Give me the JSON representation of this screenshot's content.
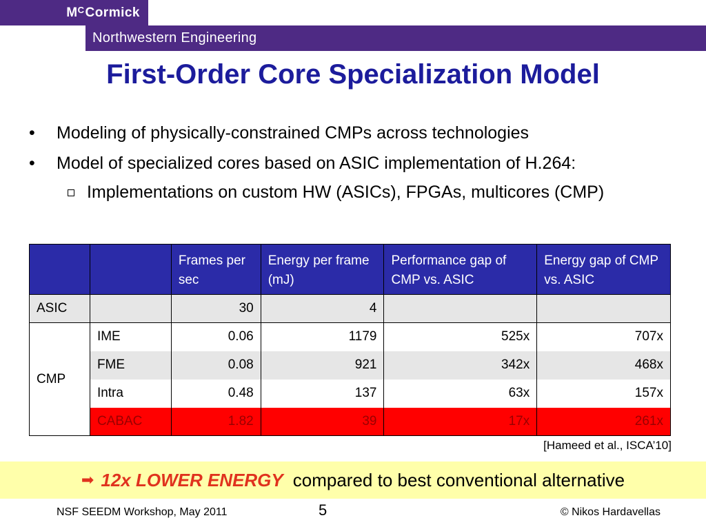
{
  "header": {
    "logo_prefix": "M",
    "logo_sup": "C",
    "logo_rest": "Cormick",
    "department": "Northwestern Engineering"
  },
  "slide": {
    "title": "First-Order Core Specialization Model",
    "bullets": [
      "Modeling of physically-constrained CMPs across technologies",
      "Model of specialized cores based on ASIC implementation of H.264:"
    ],
    "sub_bullet": "Implementations on custom HW (ASICs), FPGAs, multicores (CMP)"
  },
  "table": {
    "headers": [
      "Frames per sec",
      "Energy per frame (mJ)",
      "Performance gap of CMP vs. ASIC",
      "Energy gap of CMP vs. ASIC"
    ],
    "asic": {
      "label": "ASIC",
      "fps": "30",
      "energy": "4",
      "perf_gap": "",
      "energy_gap": ""
    },
    "cmp_label": "CMP",
    "cmp_rows": [
      {
        "name": "IME",
        "fps": "0.06",
        "energy": "1179",
        "perf_gap": "525x",
        "energy_gap": "707x"
      },
      {
        "name": "FME",
        "fps": "0.08",
        "energy": "921",
        "perf_gap": "342x",
        "energy_gap": "468x"
      },
      {
        "name": "Intra",
        "fps": "0.48",
        "energy": "137",
        "perf_gap": "63x",
        "energy_gap": "157x"
      },
      {
        "name": "CABAC",
        "fps": "1.82",
        "energy": "39",
        "perf_gap": "17x",
        "energy_gap": "261x"
      }
    ],
    "citation": "[Hameed et al., ISCA’10]"
  },
  "callout": {
    "emphasis": "12x LOWER ENERGY",
    "text": "compared to best conventional alternative"
  },
  "footer": {
    "left": "NSF SEEDM Workshop, May 2011",
    "page": "5",
    "right": "© Nikos Hardavellas"
  },
  "colors": {
    "brand_purple": "#4e2a84",
    "title_blue": "#1c1c9c",
    "table_header": "#2b2ba8",
    "highlight_red": "#ff0000",
    "callout_bg": "#ffffaa"
  }
}
